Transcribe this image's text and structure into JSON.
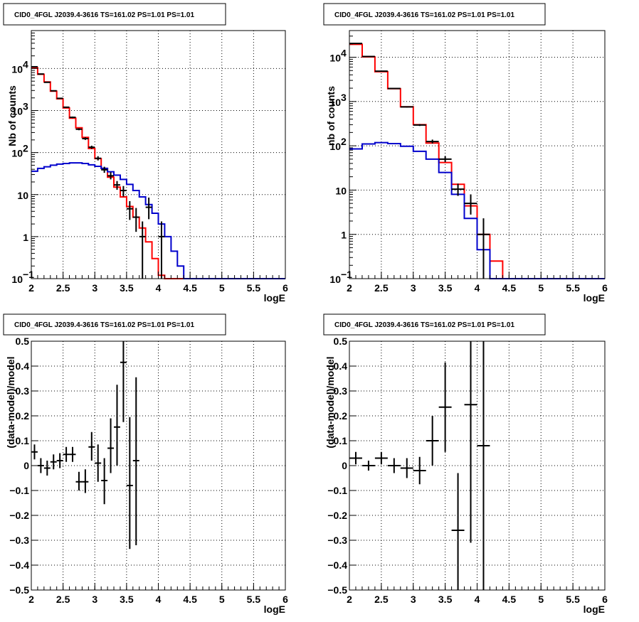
{
  "chart_data": [
    {
      "id": "p1",
      "type": "step-histogram",
      "title": "CID0_4FGL J2039.4-3616 TS=161.02 PS=1.01 PS=1.01",
      "xlabel": "logE",
      "ylabel": "Nb of counts",
      "xlim": [
        2,
        6
      ],
      "ylim": [
        0.1,
        80000
      ],
      "yscale": "log",
      "grid": true,
      "xticks": [
        "2",
        "2.5",
        "3",
        "3.5",
        "4",
        "4.5",
        "5",
        "5.5",
        "6"
      ],
      "yticks": [
        {
          "v": 0.1,
          "label": "10",
          "sup": "−1"
        },
        {
          "v": 1,
          "label": "1",
          "sup": ""
        },
        {
          "v": 10,
          "label": "10",
          "sup": ""
        },
        {
          "v": 100,
          "label": "10",
          "sup": "2"
        },
        {
          "v": 1000,
          "label": "10",
          "sup": "3"
        },
        {
          "v": 10000,
          "label": "10",
          "sup": "4"
        }
      ],
      "bin_edges_start": 2.0,
      "bin_width": 0.1,
      "series": [
        {
          "color": "#ff0000",
          "values": [
            10500,
            7300,
            4800,
            2900,
            1900,
            1150,
            660,
            390,
            230,
            125,
            72,
            42,
            26,
            15,
            8.8,
            5.2,
            2.9,
            1.6,
            0.75,
            0.3,
            0.12,
            0.1,
            0.1,
            0.1,
            0.1,
            0.1,
            0.1,
            0.1,
            0.1,
            0.1,
            0.1,
            0.1,
            0.1,
            0.1,
            0.1,
            0.1,
            0.1,
            0.1,
            0.1,
            0.1
          ]
        },
        {
          "color": "#0000cc",
          "values": [
            36,
            42,
            46,
            50,
            53,
            55,
            57,
            57,
            55,
            51,
            47,
            42,
            35,
            29,
            23,
            17.5,
            12.5,
            8.8,
            5.8,
            3.6,
            2.0,
            1.0,
            0.45,
            0.2,
            0.1,
            0.1,
            0.1,
            0.1,
            0.1,
            0.1,
            0.1,
            0.1,
            0.1,
            0.1,
            0.1,
            0.1,
            0.1,
            0.1,
            0.1,
            0.1
          ]
        }
      ],
      "points": [
        {
          "x": 2.05,
          "y": 11000,
          "xerr": 0.05,
          "ylo": 10800,
          "yhi": 11200
        },
        {
          "x": 2.15,
          "y": 7400,
          "xerr": 0.05,
          "ylo": 7250,
          "yhi": 7550
        },
        {
          "x": 2.25,
          "y": 4700,
          "xerr": 0.05,
          "ylo": 4600,
          "yhi": 4800
        },
        {
          "x": 2.35,
          "y": 2950,
          "xerr": 0.05,
          "ylo": 2880,
          "yhi": 3020
        },
        {
          "x": 2.45,
          "y": 1950,
          "xerr": 0.05,
          "ylo": 1900,
          "yhi": 2000
        },
        {
          "x": 2.55,
          "y": 1200,
          "xerr": 0.05,
          "ylo": 1160,
          "yhi": 1240
        },
        {
          "x": 2.65,
          "y": 690,
          "xerr": 0.05,
          "ylo": 660,
          "yhi": 720
        },
        {
          "x": 2.75,
          "y": 360,
          "xerr": 0.05,
          "ylo": 340,
          "yhi": 380
        },
        {
          "x": 2.85,
          "y": 215,
          "xerr": 0.05,
          "ylo": 200,
          "yhi": 230
        },
        {
          "x": 2.95,
          "y": 134,
          "xerr": 0.05,
          "ylo": 122,
          "yhi": 146
        },
        {
          "x": 3.05,
          "y": 73,
          "xerr": 0.05,
          "ylo": 65,
          "yhi": 82
        },
        {
          "x": 3.15,
          "y": 39,
          "xerr": 0.05,
          "ylo": 33,
          "yhi": 46
        },
        {
          "x": 3.25,
          "y": 28,
          "xerr": 0.05,
          "ylo": 23,
          "yhi": 34
        },
        {
          "x": 3.35,
          "y": 17,
          "xerr": 0.05,
          "ylo": 13,
          "yhi": 21
        },
        {
          "x": 3.45,
          "y": 12.5,
          "xerr": 0.05,
          "ylo": 9,
          "yhi": 16
        },
        {
          "x": 3.55,
          "y": 4.6,
          "xerr": 0.05,
          "ylo": 2.5,
          "yhi": 7
        },
        {
          "x": 3.65,
          "y": 2.9,
          "xerr": 0.05,
          "ylo": 1.3,
          "yhi": 4.8
        },
        {
          "x": 3.75,
          "y": 1.0,
          "xerr": 0.05,
          "ylo": 0.1,
          "yhi": 2.3
        },
        {
          "x": 3.85,
          "y": 5.0,
          "xerr": 0.05,
          "ylo": 2.6,
          "yhi": 8.5
        },
        {
          "x": 4.05,
          "y": 1.0,
          "xerr": 0.05,
          "ylo": 0.1,
          "yhi": 2.3
        }
      ]
    },
    {
      "id": "p2",
      "type": "step-histogram",
      "title": "CID0_4FGL J2039.4-3616 TS=161.02 PS=1.01 PS=1.01",
      "xlabel": "logE",
      "ylabel": "nb of counts",
      "xlim": [
        2,
        6
      ],
      "ylim": [
        0.1,
        40000
      ],
      "yscale": "log",
      "grid": true,
      "xticks": [
        "2",
        "2.5",
        "3",
        "3.5",
        "4",
        "4.5",
        "5",
        "5.5",
        "6"
      ],
      "yticks": [
        {
          "v": 0.1,
          "label": "10",
          "sup": "−1"
        },
        {
          "v": 1,
          "label": "1",
          "sup": ""
        },
        {
          "v": 10,
          "label": "10",
          "sup": ""
        },
        {
          "v": 100,
          "label": "10",
          "sup": "2"
        },
        {
          "v": 1000,
          "label": "10",
          "sup": "3"
        },
        {
          "v": 10000,
          "label": "10",
          "sup": "4"
        }
      ],
      "bin_edges_start": 2.0,
      "bin_width": 0.2,
      "series": [
        {
          "color": "#ff0000",
          "values": [
            19500,
            10200,
            4700,
            1950,
            760,
            300,
            115,
            42,
            13.5,
            4.4,
            1.0,
            0.25,
            0.1,
            0.1,
            0.1,
            0.1,
            0.1,
            0.1,
            0.1,
            0.1
          ]
        },
        {
          "color": "#0000cc",
          "values": [
            85,
            110,
            118,
            112,
            98,
            75,
            50,
            25,
            8.0,
            2.3,
            0.45,
            0.1,
            0.1,
            0.1,
            0.1,
            0.1,
            0.1,
            0.1,
            0.1,
            0.1
          ]
        }
      ],
      "points": [
        {
          "x": 2.1,
          "y": 20500,
          "xerr": 0.1,
          "ylo": 20200,
          "yhi": 20800
        },
        {
          "x": 2.3,
          "y": 10400,
          "xerr": 0.1,
          "ylo": 10200,
          "yhi": 10600
        },
        {
          "x": 2.5,
          "y": 4850,
          "xerr": 0.1,
          "ylo": 4750,
          "yhi": 4950
        },
        {
          "x": 2.7,
          "y": 1970,
          "xerr": 0.1,
          "ylo": 1920,
          "yhi": 2020
        },
        {
          "x": 2.9,
          "y": 755,
          "xerr": 0.1,
          "ylo": 730,
          "yhi": 780
        },
        {
          "x": 3.1,
          "y": 295,
          "xerr": 0.1,
          "ylo": 280,
          "yhi": 310
        },
        {
          "x": 3.3,
          "y": 125,
          "xerr": 0.1,
          "ylo": 113,
          "yhi": 138
        },
        {
          "x": 3.5,
          "y": 50,
          "xerr": 0.1,
          "ylo": 43,
          "yhi": 58
        },
        {
          "x": 3.7,
          "y": 10.5,
          "xerr": 0.1,
          "ylo": 7.4,
          "yhi": 14
        },
        {
          "x": 3.9,
          "y": 5.0,
          "xerr": 0.1,
          "ylo": 2.8,
          "yhi": 8.0
        },
        {
          "x": 4.1,
          "y": 1.0,
          "xerr": 0.1,
          "ylo": 0.1,
          "yhi": 2.3
        }
      ]
    },
    {
      "id": "p3",
      "type": "scatter-errorbars",
      "title": "CID0_4FGL J2039.4-3616 TS=161.02 PS=1.01 PS=1.01",
      "xlabel": "logE",
      "ylabel": "(data-model)/model",
      "xlim": [
        2,
        6
      ],
      "ylim": [
        -0.5,
        0.5
      ],
      "grid": true,
      "xticks": [
        "2",
        "2.5",
        "3",
        "3.5",
        "4",
        "4.5",
        "5",
        "5.5",
        "6"
      ],
      "yticks": [
        "−0.5",
        "−0.4",
        "−0.3",
        "−0.2",
        "−0.1",
        "0",
        "0.1",
        "0.2",
        "0.3",
        "0.4",
        "0.5"
      ],
      "points": [
        {
          "x": 2.05,
          "y": 0.055,
          "xerr": 0.05,
          "ylo": 0.025,
          "yhi": 0.085
        },
        {
          "x": 2.15,
          "y": 0.0,
          "xerr": 0.05,
          "ylo": -0.03,
          "yhi": 0.03
        },
        {
          "x": 2.25,
          "y": -0.01,
          "xerr": 0.05,
          "ylo": -0.04,
          "yhi": 0.02
        },
        {
          "x": 2.35,
          "y": 0.015,
          "xerr": 0.05,
          "ylo": -0.015,
          "yhi": 0.045
        },
        {
          "x": 2.45,
          "y": 0.02,
          "xerr": 0.05,
          "ylo": -0.01,
          "yhi": 0.05
        },
        {
          "x": 2.55,
          "y": 0.045,
          "xerr": 0.05,
          "ylo": 0.015,
          "yhi": 0.075
        },
        {
          "x": 2.65,
          "y": 0.045,
          "xerr": 0.05,
          "ylo": 0.015,
          "yhi": 0.075
        },
        {
          "x": 2.75,
          "y": -0.065,
          "xerr": 0.05,
          "ylo": -0.1,
          "yhi": -0.025
        },
        {
          "x": 2.85,
          "y": -0.065,
          "xerr": 0.05,
          "ylo": -0.11,
          "yhi": -0.015
        },
        {
          "x": 2.95,
          "y": 0.075,
          "xerr": 0.05,
          "ylo": 0.02,
          "yhi": 0.135
        },
        {
          "x": 3.05,
          "y": 0.01,
          "xerr": 0.05,
          "ylo": -0.065,
          "yhi": 0.085
        },
        {
          "x": 3.15,
          "y": -0.06,
          "xerr": 0.05,
          "ylo": -0.155,
          "yhi": 0.03
        },
        {
          "x": 3.25,
          "y": 0.07,
          "xerr": 0.05,
          "ylo": -0.03,
          "yhi": 0.19
        },
        {
          "x": 3.35,
          "y": 0.155,
          "xerr": 0.05,
          "ylo": 0.0,
          "yhi": 0.325
        },
        {
          "x": 3.45,
          "y": 0.415,
          "xerr": 0.05,
          "ylo": 0.175,
          "yhi": 0.5
        },
        {
          "x": 3.55,
          "y": -0.08,
          "xerr": 0.05,
          "ylo": -0.335,
          "yhi": 0.195
        },
        {
          "x": 3.65,
          "y": 0.02,
          "xerr": 0.05,
          "ylo": -0.32,
          "yhi": 0.355
        }
      ]
    },
    {
      "id": "p4",
      "type": "scatter-errorbars",
      "title": "CID0_4FGL J2039.4-3616 TS=161.02 PS=1.01 PS=1.01",
      "xlabel": "logE",
      "ylabel": "(data-model)/model",
      "xlim": [
        2,
        6
      ],
      "ylim": [
        -0.5,
        0.5
      ],
      "grid": true,
      "xticks": [
        "2",
        "2.5",
        "3",
        "3.5",
        "4",
        "4.5",
        "5",
        "5.5",
        "6"
      ],
      "yticks": [
        "−0.5",
        "−0.4",
        "−0.3",
        "−0.2",
        "−0.1",
        "0",
        "0.1",
        "0.2",
        "0.3",
        "0.4",
        "0.5"
      ],
      "points": [
        {
          "x": 2.1,
          "y": 0.03,
          "xerr": 0.1,
          "ylo": 0.005,
          "yhi": 0.055
        },
        {
          "x": 2.3,
          "y": 0.0,
          "xerr": 0.1,
          "ylo": -0.02,
          "yhi": 0.02
        },
        {
          "x": 2.5,
          "y": 0.03,
          "xerr": 0.1,
          "ylo": 0.005,
          "yhi": 0.055
        },
        {
          "x": 2.7,
          "y": 0.0,
          "xerr": 0.1,
          "ylo": -0.03,
          "yhi": 0.03
        },
        {
          "x": 2.9,
          "y": -0.01,
          "xerr": 0.1,
          "ylo": -0.05,
          "yhi": 0.03
        },
        {
          "x": 3.1,
          "y": -0.02,
          "xerr": 0.1,
          "ylo": -0.075,
          "yhi": 0.035
        },
        {
          "x": 3.3,
          "y": 0.1,
          "xerr": 0.1,
          "ylo": 0.0,
          "yhi": 0.2
        },
        {
          "x": 3.5,
          "y": 0.235,
          "xerr": 0.1,
          "ylo": 0.055,
          "yhi": 0.415
        },
        {
          "x": 3.7,
          "y": -0.26,
          "xerr": 0.1,
          "ylo": -0.5,
          "yhi": -0.03
        },
        {
          "x": 3.9,
          "y": 0.245,
          "xerr": 0.1,
          "ylo": -0.31,
          "yhi": 0.5
        },
        {
          "x": 4.1,
          "y": 0.08,
          "xerr": 0.1,
          "ylo": -0.5,
          "yhi": 0.5
        }
      ]
    }
  ]
}
